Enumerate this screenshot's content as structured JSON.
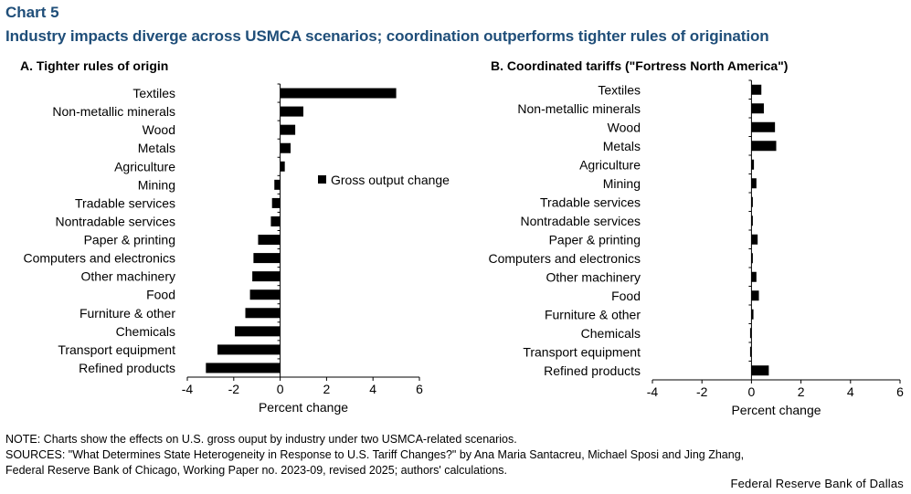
{
  "header": {
    "chart_label": "Chart 5",
    "title": "Industry impacts diverge across USMCA scenarios; coordination outperforms tighter rules of origination"
  },
  "chart_data": [
    {
      "type": "bar",
      "orientation": "horizontal",
      "title": "A. Tighter rules of origin",
      "xlabel": "Percent change",
      "xlim": [
        -4,
        6
      ],
      "xticks": [
        "-4",
        "-2",
        "0",
        "2",
        "4",
        "6"
      ],
      "legend": {
        "label": "Gross output change",
        "placement": "center-right"
      },
      "color": "#000000",
      "categories": [
        "Textiles",
        "Non-metallic minerals",
        "Wood",
        "Metals",
        "Agriculture",
        "Mining",
        "Tradable services",
        "Nontradable services",
        "Paper & printing",
        "Computers and electronics",
        "Other machinery",
        "Food",
        "Furniture & other",
        "Chemicals",
        "Transport equipment",
        "Refined products"
      ],
      "series": [
        {
          "name": "Gross output change",
          "values": [
            5.0,
            1.0,
            0.65,
            0.45,
            0.2,
            -0.25,
            -0.35,
            -0.4,
            -0.95,
            -1.15,
            -1.2,
            -1.3,
            -1.5,
            -1.95,
            -2.7,
            -3.2
          ]
        }
      ]
    },
    {
      "type": "bar",
      "orientation": "horizontal",
      "title": "B. Coordinated tariffs (\"Fortress North America\")",
      "xlabel": "Percent change",
      "xlim": [
        -4,
        6
      ],
      "xticks": [
        "-4",
        "-2",
        "0",
        "2",
        "4",
        "6"
      ],
      "color": "#000000",
      "categories": [
        "Textiles",
        "Non-metallic minerals",
        "Wood",
        "Metals",
        "Agriculture",
        "Mining",
        "Tradable services",
        "Nontradable services",
        "Paper & printing",
        "Computers and electronics",
        "Other machinery",
        "Food",
        "Furniture & other",
        "Chemicals",
        "Transport equipment",
        "Refined products"
      ],
      "series": [
        {
          "name": "Gross output change",
          "values": [
            0.4,
            0.5,
            0.95,
            1.0,
            0.1,
            0.2,
            0.02,
            0.05,
            0.25,
            0.05,
            0.2,
            0.3,
            0.08,
            -0.03,
            -0.05,
            0.7
          ]
        }
      ]
    }
  ],
  "footer": {
    "note": "NOTE: Charts show the effects on U.S. gross ouput by industry under two USMCA-related  scenarios.",
    "sources_line1": "SOURCES: \"What Determines State Heterogeneity in Response to U.S. Tariff Changes?\" by Ana Maria Santacreu, Michael Sposi and Jing Zhang,",
    "sources_line2": "Federal Reserve Bank of Chicago, Working Paper no. 2023-09, revised 2025; authors' calculations.",
    "credit": "Federal Reserve Bank of Dallas"
  }
}
